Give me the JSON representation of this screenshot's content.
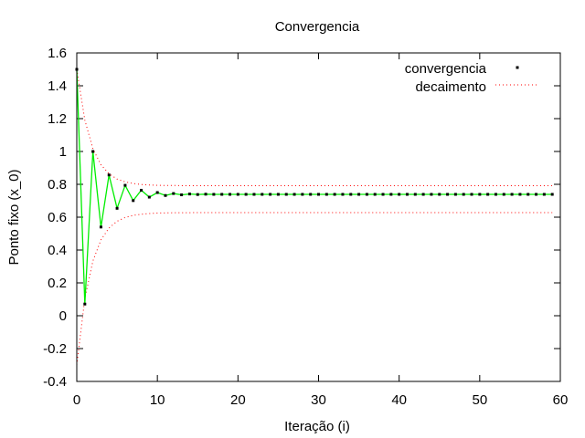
{
  "colors": {
    "background": "#ffffff",
    "axis": "#000000",
    "convergence_line": "#00ee00",
    "points": "#000000",
    "decay": "#ff0000"
  },
  "chart_data": {
    "type": "line",
    "title": "Convergencia",
    "xlabel": "Iteração (i)",
    "ylabel": "Ponto fixo (x_0)",
    "xlim": [
      0,
      60
    ],
    "ylim": [
      -0.4,
      1.6
    ],
    "xticks": [
      0,
      10,
      20,
      30,
      40,
      50,
      60
    ],
    "xtick_labels": [
      "0",
      "10",
      "20",
      "30",
      "40",
      "50",
      "60"
    ],
    "yticks": [
      -0.4,
      -0.2,
      0,
      0.2,
      0.4,
      0.6,
      0.8,
      1,
      1.2,
      1.4,
      1.6
    ],
    "ytick_labels": [
      "-0.4",
      "-0.2",
      "0",
      "0.2",
      "0.4",
      "0.6",
      "0.8",
      "1",
      "1.2",
      "1.4",
      "1.6"
    ],
    "grid": false,
    "legend_position": "top-right",
    "series": [
      {
        "name": "convergencia",
        "style": "points joined by green line",
        "x": [
          0,
          1,
          2,
          3,
          4,
          5,
          6,
          7,
          8,
          9,
          10,
          11,
          12,
          13,
          14,
          15,
          16,
          17,
          18,
          19,
          20,
          21,
          22,
          23,
          24,
          25,
          26,
          27,
          28,
          29,
          30,
          31,
          32,
          33,
          34,
          35,
          36,
          37,
          38,
          39,
          40,
          41,
          42,
          43,
          44,
          45,
          46,
          47,
          48,
          49,
          50,
          51,
          52,
          53,
          54,
          55,
          56,
          57,
          58,
          59
        ],
        "y": [
          1.5,
          0.071,
          1.0,
          0.54,
          0.857,
          0.654,
          0.794,
          0.701,
          0.764,
          0.722,
          0.75,
          0.732,
          0.744,
          0.736,
          0.741,
          0.738,
          0.74,
          0.739,
          0.739,
          0.739,
          0.739,
          0.739,
          0.739,
          0.739,
          0.739,
          0.739,
          0.739,
          0.739,
          0.739,
          0.739,
          0.739,
          0.739,
          0.739,
          0.739,
          0.739,
          0.739,
          0.739,
          0.739,
          0.739,
          0.739,
          0.739,
          0.739,
          0.739,
          0.739,
          0.739,
          0.739,
          0.739,
          0.739,
          0.739,
          0.739,
          0.739,
          0.739,
          0.739,
          0.739,
          0.739,
          0.739,
          0.739,
          0.739,
          0.739,
          0.739
        ]
      },
      {
        "name": "decaimento",
        "style": "dotted envelope",
        "x": [
          0,
          1,
          2,
          3,
          4,
          5,
          6,
          7,
          8,
          9,
          10,
          11,
          12,
          13,
          14,
          15,
          16,
          17,
          18,
          19,
          20,
          21,
          22,
          23,
          24,
          25,
          26,
          27,
          28,
          29,
          30,
          31,
          32,
          33,
          34,
          35,
          36,
          37,
          38,
          39,
          40,
          41,
          42,
          43,
          44,
          45,
          46,
          47,
          48,
          49,
          50,
          51,
          52,
          53,
          54,
          55,
          56,
          57,
          58,
          59
        ],
        "upper": [
          1.5,
          1.191,
          1.017,
          0.919,
          0.864,
          0.832,
          0.815,
          0.805,
          0.799,
          0.796,
          0.794,
          0.793,
          0.793,
          0.792,
          0.792,
          0.792,
          0.792,
          0.792,
          0.792,
          0.792,
          0.792,
          0.792,
          0.792,
          0.792,
          0.792,
          0.792,
          0.792,
          0.792,
          0.792,
          0.792,
          0.792,
          0.792,
          0.792,
          0.792,
          0.792,
          0.792,
          0.792,
          0.792,
          0.792,
          0.792,
          0.792,
          0.792,
          0.792,
          0.792,
          0.792,
          0.792,
          0.792,
          0.792,
          0.792,
          0.792,
          0.792,
          0.792,
          0.792,
          0.792,
          0.792,
          0.792,
          0.792,
          0.792,
          0.792,
          0.792
        ],
        "lower": [
          -0.3,
          0.105,
          0.333,
          0.462,
          0.534,
          0.575,
          0.598,
          0.611,
          0.618,
          0.622,
          0.625,
          0.626,
          0.627,
          0.627,
          0.627,
          0.628,
          0.628,
          0.628,
          0.628,
          0.628,
          0.628,
          0.628,
          0.628,
          0.628,
          0.628,
          0.628,
          0.628,
          0.628,
          0.628,
          0.628,
          0.628,
          0.628,
          0.628,
          0.628,
          0.628,
          0.628,
          0.628,
          0.628,
          0.628,
          0.628,
          0.628,
          0.628,
          0.628,
          0.628,
          0.628,
          0.628,
          0.628,
          0.628,
          0.628,
          0.628,
          0.628,
          0.628,
          0.628,
          0.628,
          0.628,
          0.628,
          0.628,
          0.628,
          0.628,
          0.628
        ]
      }
    ]
  }
}
